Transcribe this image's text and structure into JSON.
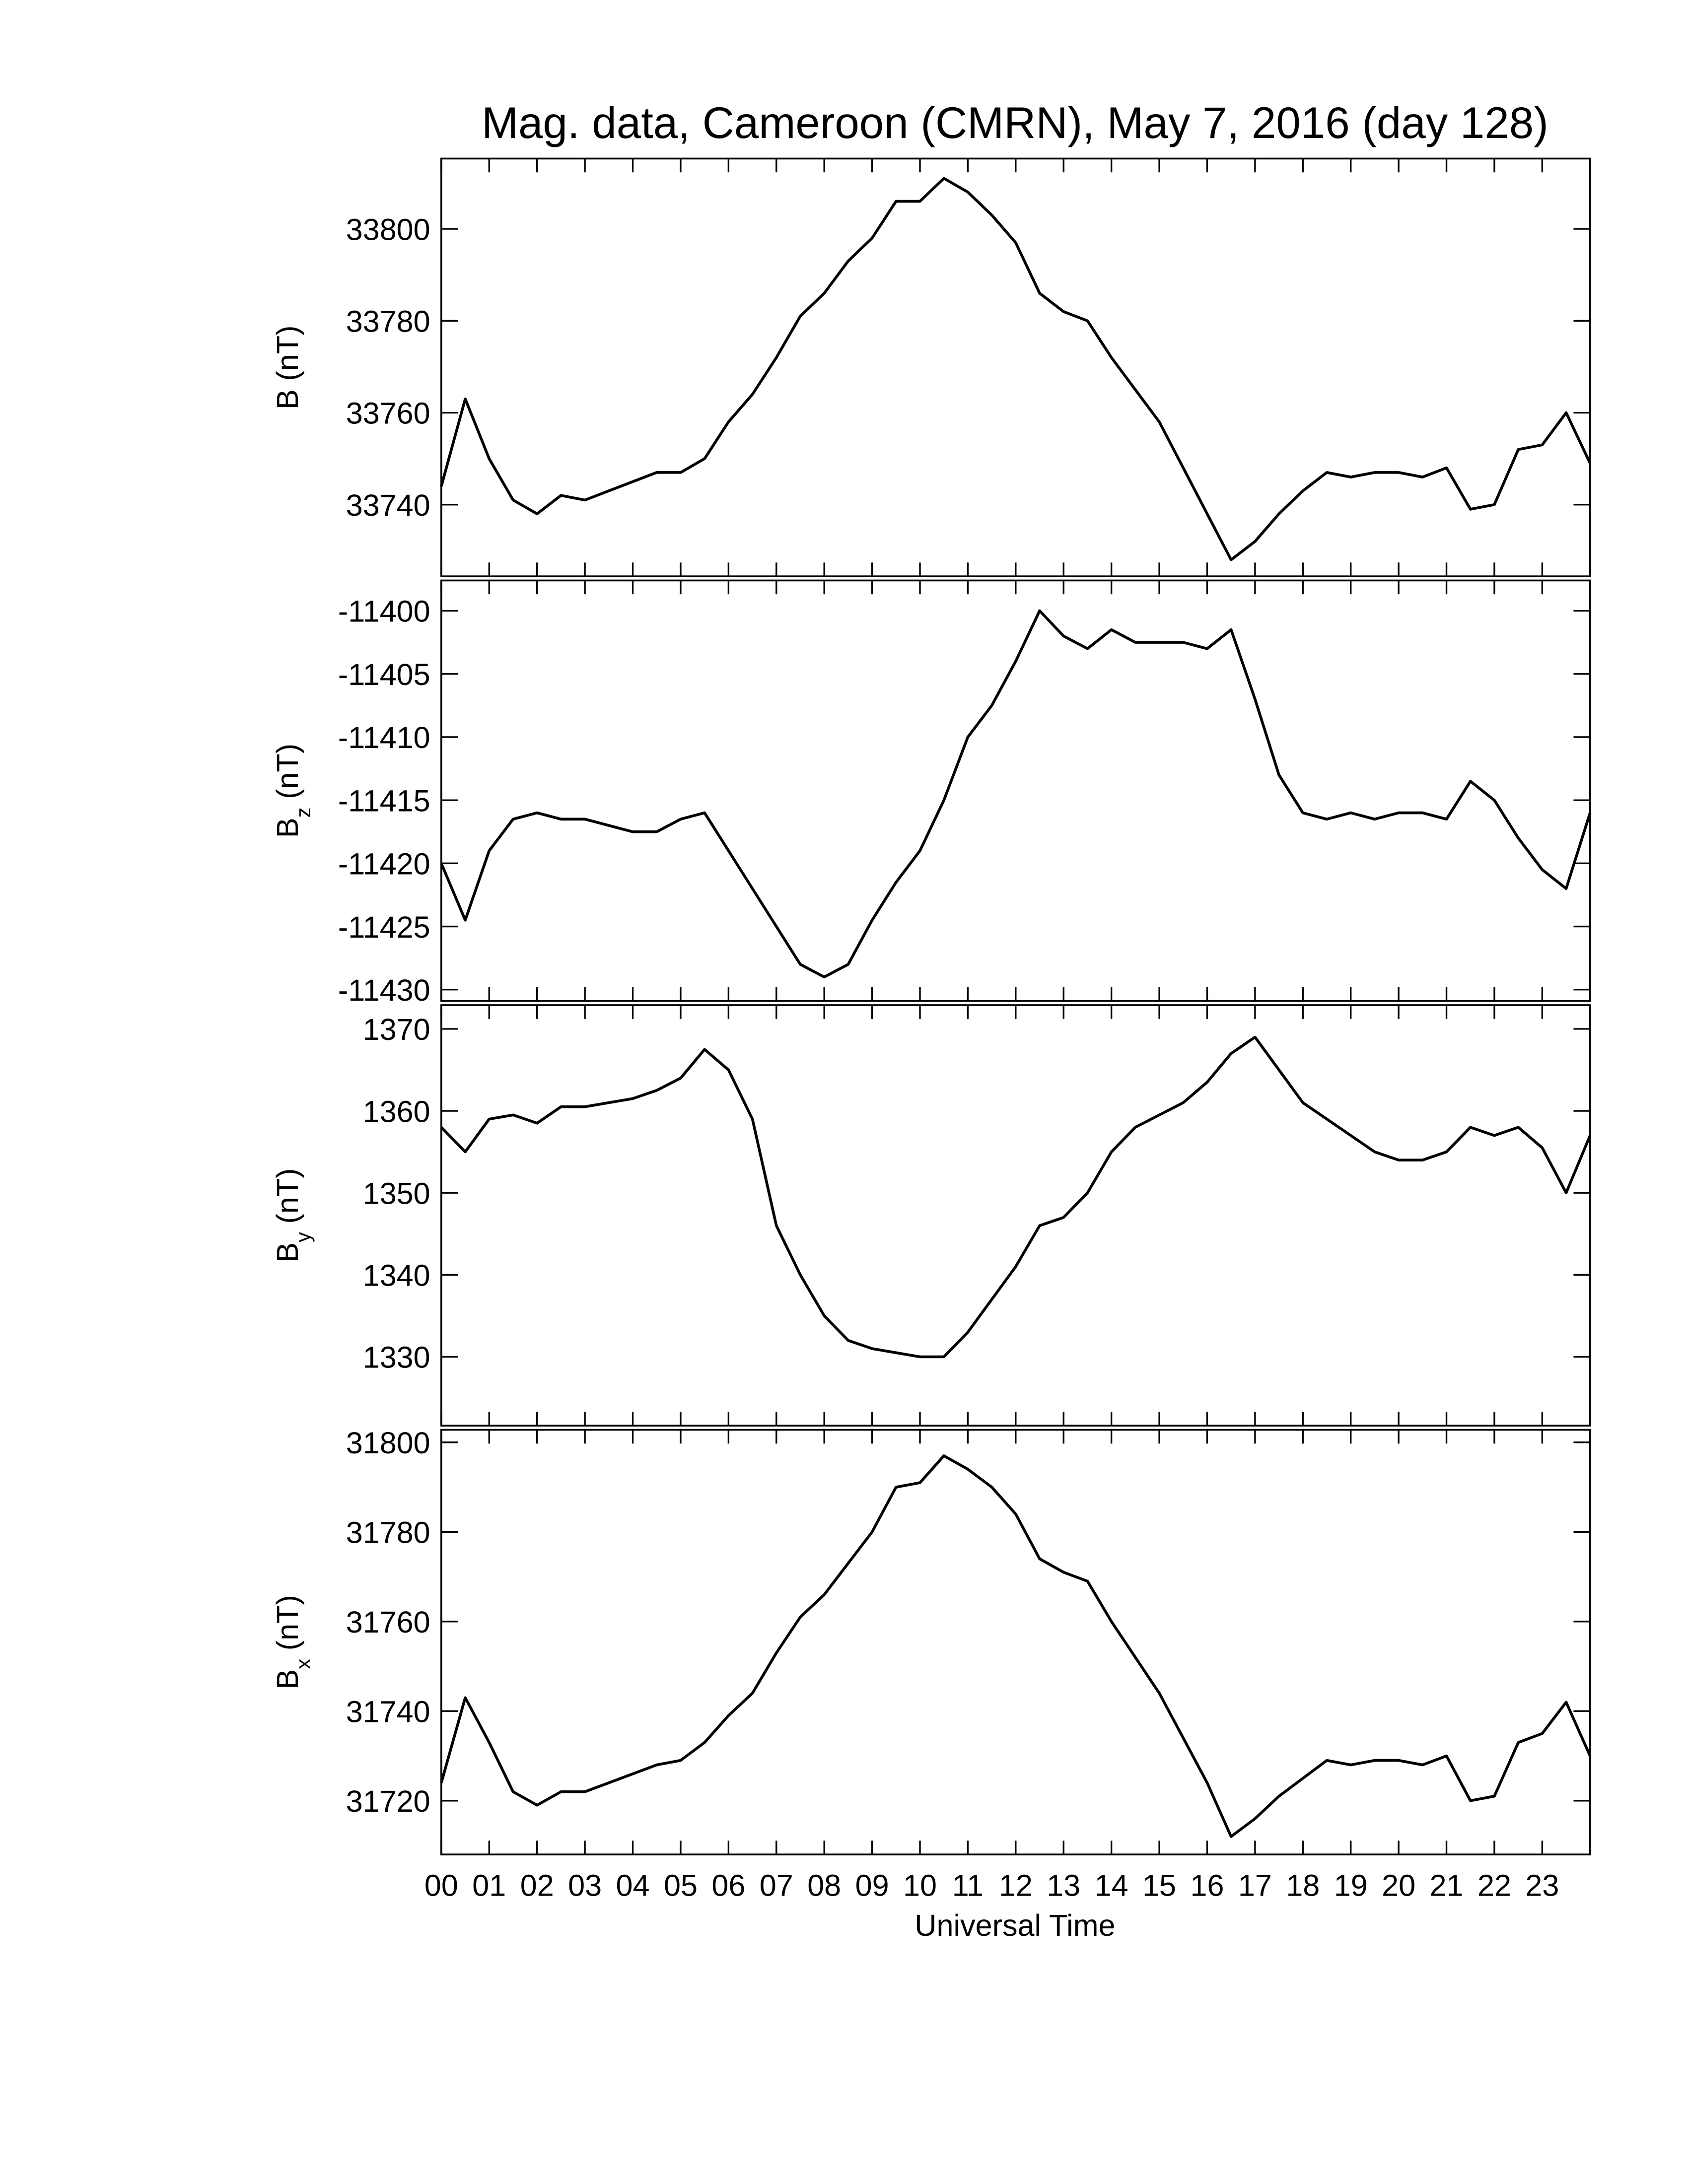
{
  "title": "Mag. data, Cameroon (CMRN), May 7, 2016 (day 128)",
  "xlabel": "Universal Time",
  "chart_data": [
    {
      "type": "line",
      "ylabel": "B",
      "ylabel_unit": "(nT)",
      "color": "#000000",
      "x": [
        0,
        0.5,
        1,
        1.5,
        2,
        2.5,
        3,
        3.5,
        4,
        4.5,
        5,
        5.5,
        6,
        6.5,
        7,
        7.5,
        8,
        8.5,
        9,
        9.5,
        10,
        10.5,
        11,
        11.5,
        12,
        12.5,
        13,
        13.5,
        14,
        14.5,
        15,
        15.5,
        16,
        16.5,
        17,
        17.5,
        18,
        18.5,
        19,
        19.5,
        20,
        20.5,
        21,
        21.5,
        22,
        22.5,
        23,
        23.5,
        24
      ],
      "values": [
        33744,
        33763,
        33750,
        33741,
        33738,
        33742,
        33741,
        33743,
        33745,
        33747,
        33747,
        33750,
        33758,
        33764,
        33772,
        33781,
        33786,
        33793,
        33798,
        33806,
        33806,
        33811,
        33808,
        33803,
        33797,
        33786,
        33782,
        33780,
        33772,
        33765,
        33758,
        33748,
        33738,
        33728,
        33732,
        33738,
        33743,
        33747,
        33746,
        33747,
        33747,
        33746,
        33748,
        33739,
        33740,
        33752,
        33753,
        33760,
        33749
      ],
      "ylim": [
        33724.4,
        33815.3
      ],
      "yticks": [
        33740,
        33760,
        33780,
        33800
      ]
    },
    {
      "type": "line",
      "ylabel": "B",
      "ylabel_sub": "z",
      "ylabel_unit": "(nT)",
      "color": "#000000",
      "x": [
        0,
        0.5,
        1,
        1.5,
        2,
        2.5,
        3,
        3.5,
        4,
        4.5,
        5,
        5.5,
        6,
        6.5,
        7,
        7.5,
        8,
        8.5,
        9,
        9.5,
        10,
        10.5,
        11,
        11.5,
        12,
        12.5,
        13,
        13.5,
        14,
        14.5,
        15,
        15.5,
        16,
        16.5,
        17,
        17.5,
        18,
        18.5,
        19,
        19.5,
        20,
        20.5,
        21,
        21.5,
        22,
        22.5,
        23,
        23.5,
        24
      ],
      "values": [
        -11420,
        -11424.5,
        -11419,
        -11416.5,
        -11416,
        -11416.5,
        -11416.5,
        -11417,
        -11417.5,
        -11417.5,
        -11416.5,
        -11416,
        -11419,
        -11422,
        -11425,
        -11428,
        -11429,
        -11428,
        -11424.5,
        -11421.5,
        -11419,
        -11415,
        -11410,
        -11407.5,
        -11404,
        -11400,
        -11402,
        -11403,
        -11401.5,
        -11402.5,
        -11402.5,
        -11402.5,
        -11403,
        -11401.5,
        -11407,
        -11413,
        -11416,
        -11416.5,
        -11416,
        -11416.5,
        -11416,
        -11416,
        -11416.5,
        -11413.5,
        -11415,
        -11418,
        -11420.5,
        -11422,
        -11416
      ],
      "ylim": [
        -11430.9,
        -11397.6
      ],
      "yticks": [
        -11430,
        -11425,
        -11420,
        -11415,
        -11410,
        -11405,
        -11400
      ]
    },
    {
      "type": "line",
      "ylabel": "B",
      "ylabel_sub": "y",
      "ylabel_unit": "(nT)",
      "color": "#000000",
      "x": [
        0,
        0.5,
        1,
        1.5,
        2,
        2.5,
        3,
        3.5,
        4,
        4.5,
        5,
        5.5,
        6,
        6.5,
        7,
        7.5,
        8,
        8.5,
        9,
        9.5,
        10,
        10.5,
        11,
        11.5,
        12,
        12.5,
        13,
        13.5,
        14,
        14.5,
        15,
        15.5,
        16,
        16.5,
        17,
        17.5,
        18,
        18.5,
        19,
        19.5,
        20,
        20.5,
        21,
        21.5,
        22,
        22.5,
        23,
        23.5,
        24
      ],
      "values": [
        1358,
        1355,
        1359,
        1359.5,
        1358.5,
        1360.5,
        1360.5,
        1361,
        1361.5,
        1362.5,
        1364,
        1367.5,
        1365,
        1359,
        1346,
        1340,
        1335,
        1332,
        1331,
        1330.5,
        1330,
        1330,
        1333,
        1337,
        1341,
        1346,
        1347,
        1350,
        1355,
        1358,
        1359.5,
        1361,
        1363.5,
        1367,
        1369,
        1365,
        1361,
        1359,
        1357,
        1355,
        1354,
        1354,
        1355,
        1358,
        1357,
        1358,
        1355.5,
        1350,
        1357
      ],
      "ylim": [
        1321.6,
        1372.9
      ],
      "yticks": [
        1330,
        1340,
        1350,
        1360,
        1370
      ]
    },
    {
      "type": "line",
      "ylabel": "B",
      "ylabel_sub": "x",
      "ylabel_unit": "(nT)",
      "color": "#000000",
      "x": [
        0,
        0.5,
        1,
        1.5,
        2,
        2.5,
        3,
        3.5,
        4,
        4.5,
        5,
        5.5,
        6,
        6.5,
        7,
        7.5,
        8,
        8.5,
        9,
        9.5,
        10,
        10.5,
        11,
        11.5,
        12,
        12.5,
        13,
        13.5,
        14,
        14.5,
        15,
        15.5,
        16,
        16.5,
        17,
        17.5,
        18,
        18.5,
        19,
        19.5,
        20,
        20.5,
        21,
        21.5,
        22,
        22.5,
        23,
        23.5,
        24
      ],
      "values": [
        31724,
        31743,
        31733,
        31722,
        31719,
        31722,
        31722,
        31724,
        31726,
        31728,
        31729,
        31733,
        31739,
        31744,
        31753,
        31761,
        31766,
        31773,
        31780,
        31790,
        31791,
        31797,
        31794,
        31790,
        31784,
        31774,
        31771,
        31769,
        31760,
        31752,
        31744,
        31734,
        31724,
        31712,
        31716,
        31721,
        31725,
        31729,
        31728,
        31729,
        31729,
        31728,
        31730,
        31720,
        31721,
        31733,
        31735,
        31742,
        31730
      ],
      "ylim": [
        31708,
        31802.8
      ],
      "yticks": [
        31720,
        31740,
        31760,
        31780,
        31800
      ],
      "xlim": [
        0,
        24
      ],
      "xticks": [
        {
          "value": 0,
          "label": "00"
        },
        {
          "value": 1,
          "label": "01"
        },
        {
          "value": 2,
          "label": "02"
        },
        {
          "value": 3,
          "label": "03"
        },
        {
          "value": 4,
          "label": "04"
        },
        {
          "value": 5,
          "label": "05"
        },
        {
          "value": 6,
          "label": "06"
        },
        {
          "value": 7,
          "label": "07"
        },
        {
          "value": 8,
          "label": "08"
        },
        {
          "value": 9,
          "label": "09"
        },
        10,
        11,
        12,
        13,
        14,
        15,
        16,
        17,
        18,
        19,
        20,
        21,
        22,
        23
      ]
    }
  ]
}
